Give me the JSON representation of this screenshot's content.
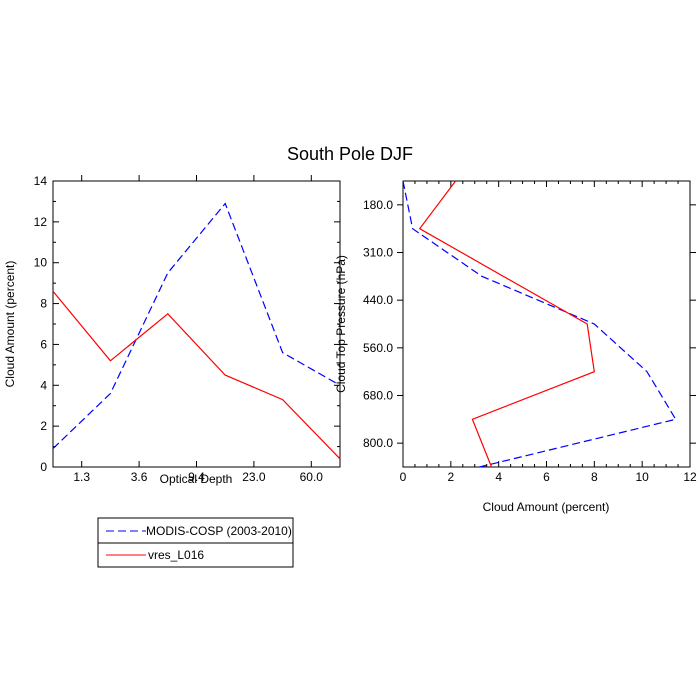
{
  "title": "South Pole DJF",
  "chart_data": [
    {
      "type": "line",
      "xlabel": "Optical Depth",
      "ylabel": "Cloud Amount (percent)",
      "x_tick_labels": [
        "1.3",
        "3.6",
        "9.4",
        "23.0",
        "60.0"
      ],
      "ylim": [
        0,
        14
      ],
      "y_ticks": [
        "0",
        "2",
        "4",
        "6",
        "8",
        "10",
        "12",
        "14"
      ],
      "series": [
        {
          "name": "MODIS-COSP (2003-2010)",
          "color": "#0000ff",
          "dash": "dashed",
          "values": [
            0.9,
            3.6,
            9.5,
            12.9,
            5.6,
            4.0
          ]
        },
        {
          "name": "vres_L016",
          "color": "#ff0000",
          "dash": "solid",
          "values": [
            8.6,
            5.2,
            7.5,
            4.5,
            3.3,
            0.4
          ]
        }
      ],
      "legend": "below"
    },
    {
      "type": "line",
      "xlabel": "Cloud Amount (percent)",
      "ylabel": "Cloud Top Pressure (hPa)",
      "xlim": [
        0,
        12
      ],
      "x_ticks": [
        "0",
        "2",
        "4",
        "6",
        "8",
        "10",
        "12"
      ],
      "y_tick_labels": [
        "180.0",
        "310.0",
        "440.0",
        "560.0",
        "680.0",
        "800.0"
      ],
      "series": [
        {
          "name": "MODIS-COSP (2003-2010)",
          "color": "#0000ff",
          "dash": "dashed",
          "points": [
            [
              0.0,
              0
            ],
            [
              0.4,
              1
            ],
            [
              3.3,
              2
            ],
            [
              8.0,
              3
            ],
            [
              10.2,
              4
            ],
            [
              11.4,
              5
            ],
            [
              3.2,
              6
            ]
          ]
        },
        {
          "name": "vres_L016",
          "color": "#ff0000",
          "dash": "solid",
          "points": [
            [
              2.2,
              0
            ],
            [
              0.7,
              1
            ],
            [
              7.7,
              3
            ],
            [
              8.0,
              4
            ],
            [
              2.9,
              5
            ],
            [
              3.7,
              6
            ]
          ]
        }
      ]
    }
  ]
}
